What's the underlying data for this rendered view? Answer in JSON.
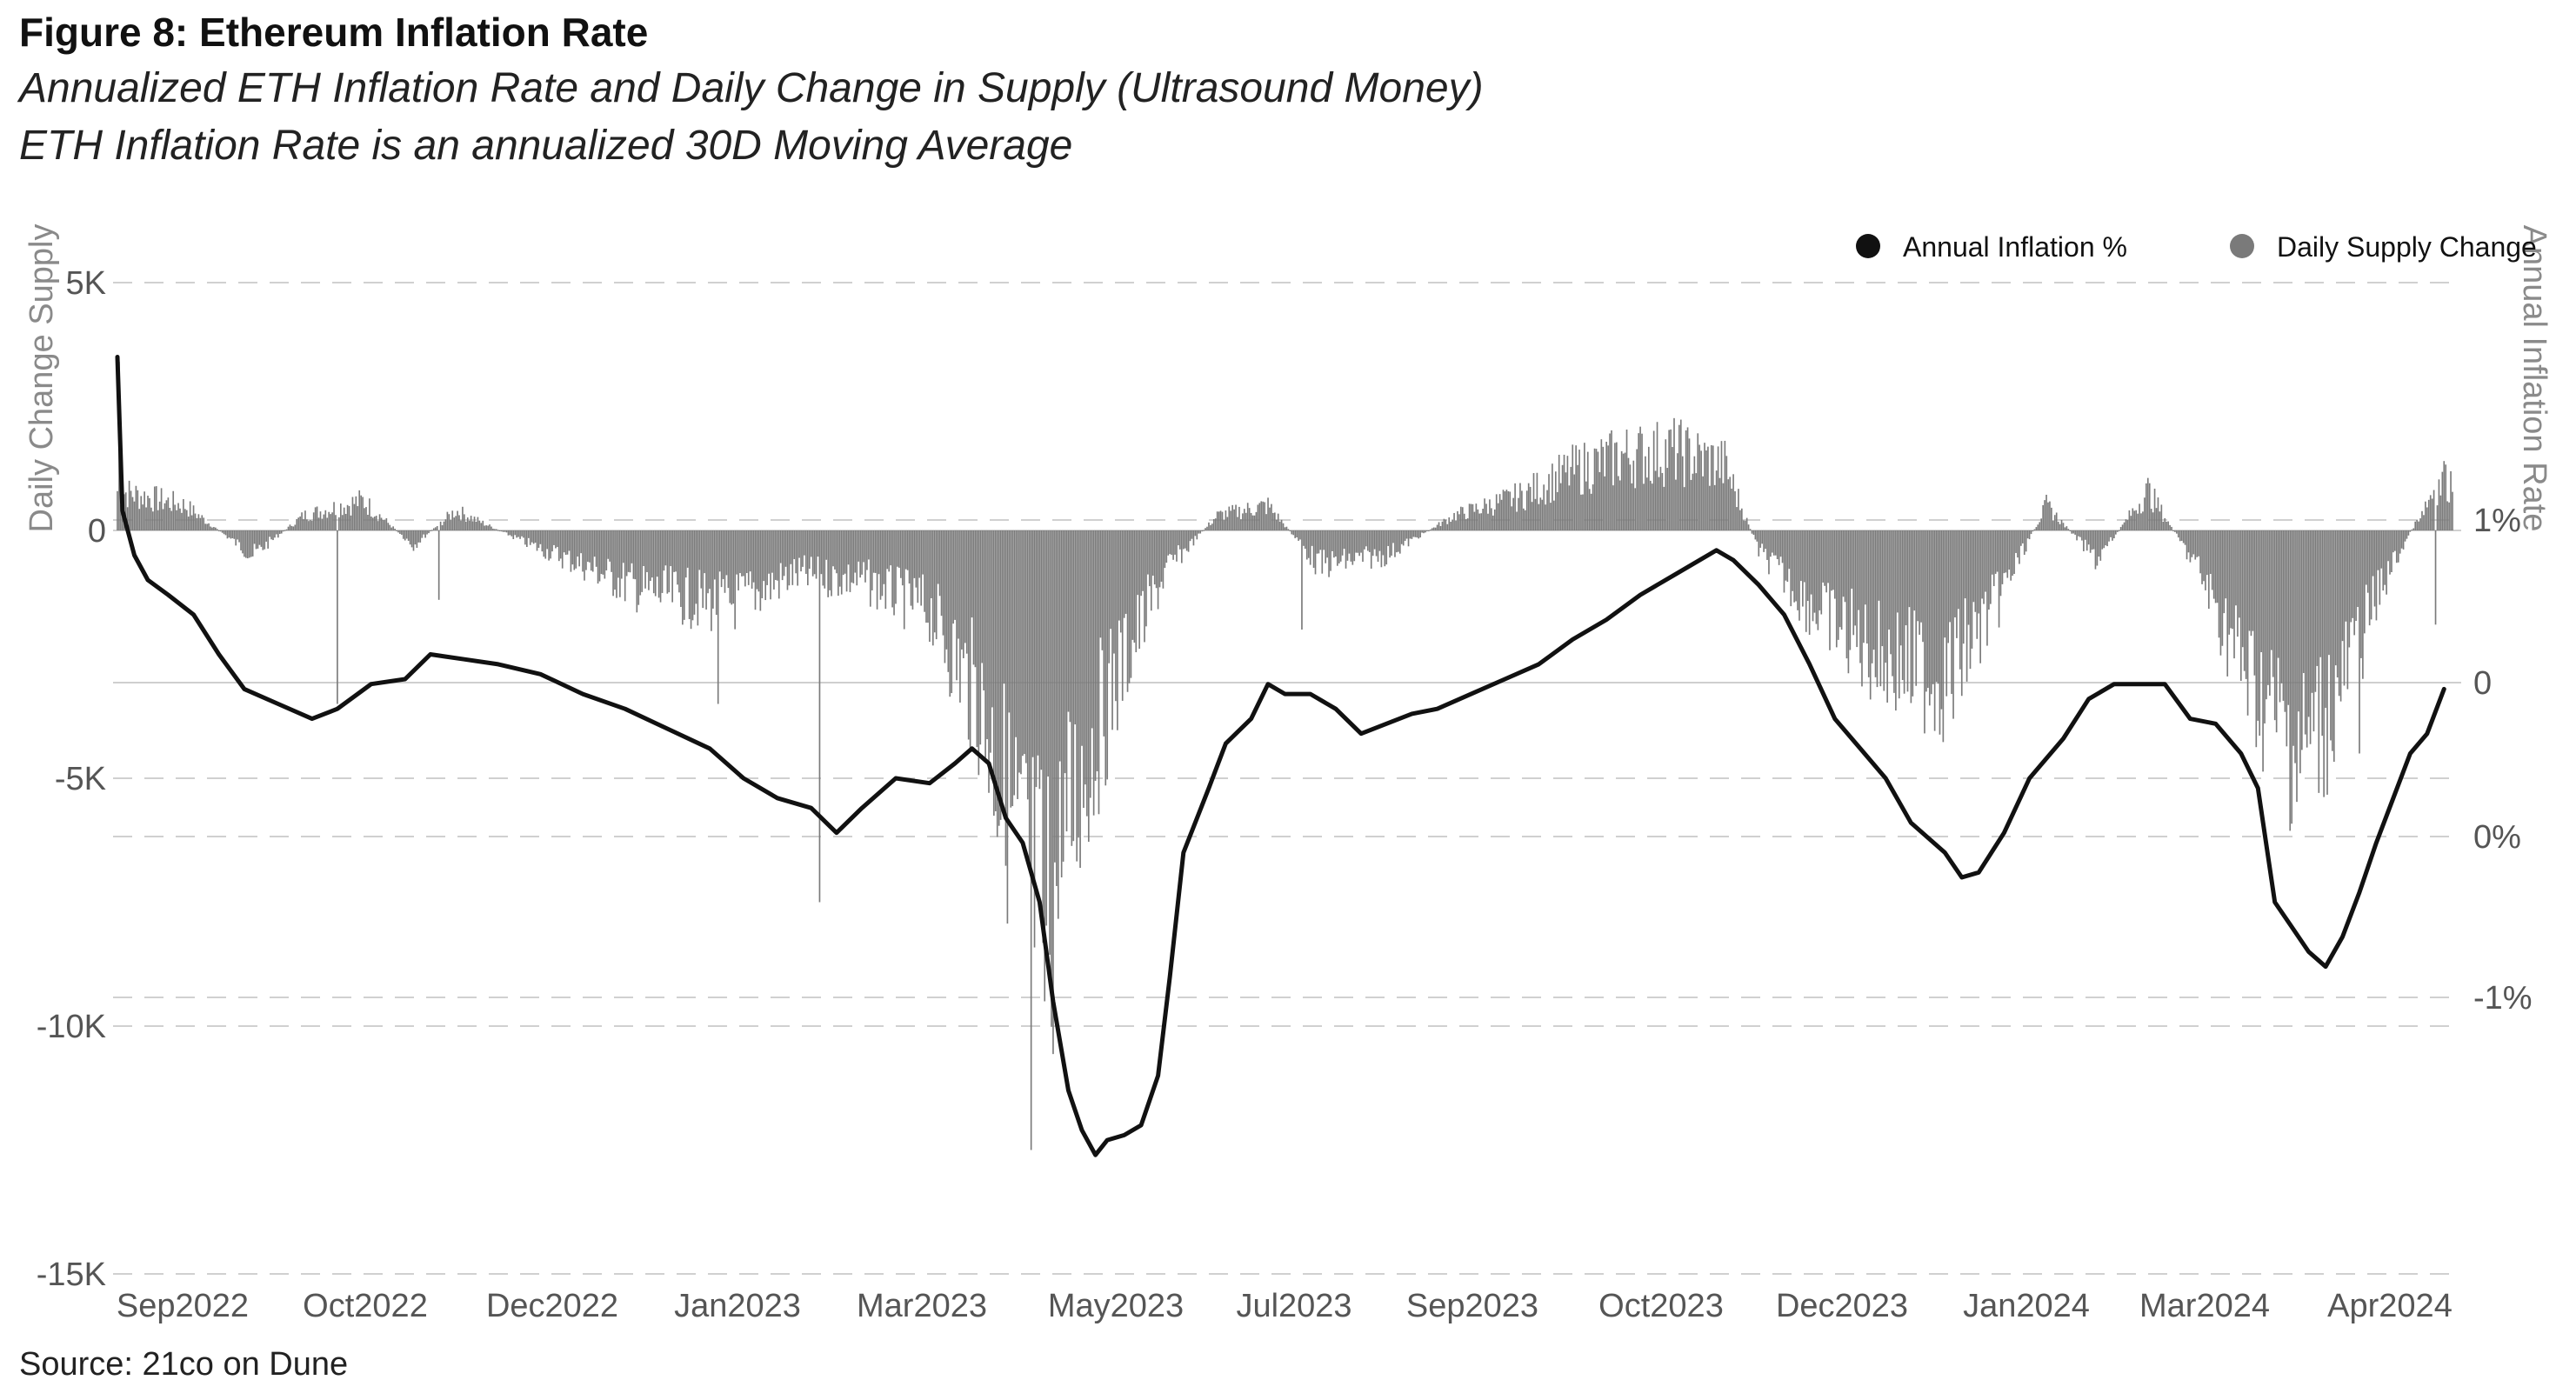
{
  "figure": {
    "title": "Figure 8: Ethereum Inflation Rate",
    "subtitle_1": "Annualized ETH Inflation Rate and Daily Change in Supply (Ultrasound Money)",
    "subtitle_2": "ETH Inflation Rate is an annualized 30D Moving Average",
    "source": "Source: 21co on Dune"
  },
  "colors": {
    "line": "#111111",
    "bars": "#7a7a7a",
    "grid": "#d0d0d0",
    "zero_line": "#cccccc"
  },
  "chart_data": {
    "type": "bar+line",
    "title": "Figure 8: Ethereum Inflation Rate",
    "left_axis": {
      "label": "Daily Change Supply",
      "ticks": [
        "5K",
        "0",
        "-5K",
        "-10K",
        "-15K"
      ],
      "tick_values": [
        5000,
        0,
        -5000,
        -10000,
        -15000
      ],
      "range": [
        -15000,
        5000
      ]
    },
    "right_axis": {
      "label": "Annual Inflation Rate",
      "ticks": [
        "1%",
        "0",
        "0%",
        "-1%"
      ]
    },
    "x_axis": {
      "ticks": [
        "Sep2022",
        "Oct2022",
        "Dec2022",
        "Jan2023",
        "Mar2023",
        "May2023",
        "Jul2023",
        "Sep2023",
        "Oct2023",
        "Dec2023",
        "Jan2024",
        "Mar2024",
        "Apr2024"
      ]
    },
    "legend": [
      {
        "name": "Annual Inflation %",
        "color": "#111111"
      },
      {
        "name": "Daily Supply Change",
        "color": "#7a7a7a"
      }
    ],
    "series": [
      {
        "name": "Daily Supply Change",
        "type": "bar",
        "unit": "ETH",
        "anchors": [
          {
            "x": 0,
            "y": 800
          },
          {
            "x": 40,
            "y": 500
          },
          {
            "x": 80,
            "y": -500
          },
          {
            "x": 110,
            "y": 300
          },
          {
            "x": 145,
            "y": 600
          },
          {
            "x": 175,
            "y": -300
          },
          {
            "x": 200,
            "y": 400
          },
          {
            "x": 245,
            "y": -300
          },
          {
            "x": 275,
            "y": -700
          },
          {
            "x": 310,
            "y": -1200
          },
          {
            "x": 360,
            "y": -1500
          },
          {
            "x": 400,
            "y": -900
          },
          {
            "x": 440,
            "y": -1000
          },
          {
            "x": 480,
            "y": -1600
          },
          {
            "x": 510,
            "y": -3500
          },
          {
            "x": 530,
            "y": -6000
          },
          {
            "x": 550,
            "y": -8000
          },
          {
            "x": 565,
            "y": -5500
          },
          {
            "x": 590,
            "y": -3000
          },
          {
            "x": 620,
            "y": -800
          },
          {
            "x": 650,
            "y": 300
          },
          {
            "x": 680,
            "y": 500
          },
          {
            "x": 710,
            "y": -700
          },
          {
            "x": 750,
            "y": -500
          },
          {
            "x": 790,
            "y": 300
          },
          {
            "x": 830,
            "y": 700
          },
          {
            "x": 860,
            "y": 1200
          },
          {
            "x": 890,
            "y": 1500
          },
          {
            "x": 920,
            "y": 1600
          },
          {
            "x": 950,
            "y": 1300
          },
          {
            "x": 970,
            "y": -400
          },
          {
            "x": 1000,
            "y": -1500
          },
          {
            "x": 1040,
            "y": -2500
          },
          {
            "x": 1080,
            "y": -3000
          },
          {
            "x": 1110,
            "y": -1500
          },
          {
            "x": 1140,
            "y": 500
          },
          {
            "x": 1170,
            "y": -600
          },
          {
            "x": 1200,
            "y": 800
          },
          {
            "x": 1230,
            "y": -800
          },
          {
            "x": 1260,
            "y": -3000
          },
          {
            "x": 1290,
            "y": -4500
          },
          {
            "x": 1310,
            "y": -3500
          },
          {
            "x": 1340,
            "y": -1000
          },
          {
            "x": 1370,
            "y": 900
          },
          {
            "x": 1380,
            "y": 1000
          }
        ],
        "spikes": [
          {
            "x": 1,
            "y": 3400
          },
          {
            "x": 130,
            "y": -3500
          },
          {
            "x": 190,
            "y": -1400
          },
          {
            "x": 355,
            "y": -3500
          },
          {
            "x": 415,
            "y": -7500
          },
          {
            "x": 540,
            "y": -12500
          },
          {
            "x": 548,
            "y": -9500
          },
          {
            "x": 558,
            "y": -7000
          },
          {
            "x": 700,
            "y": -2000
          },
          {
            "x": 1085,
            "y": -3800
          },
          {
            "x": 1325,
            "y": -4500
          },
          {
            "x": 1370,
            "y": -1900
          },
          {
            "x": 1375,
            "y": 1400
          }
        ]
      },
      {
        "name": "Annual Inflation %",
        "type": "line",
        "unit": "plotted on Daily Change Supply scale",
        "points": [
          {
            "x": 0,
            "y": 3500
          },
          {
            "x": 3,
            "y": 400
          },
          {
            "x": 10,
            "y": -500
          },
          {
            "x": 18,
            "y": -1000
          },
          {
            "x": 30,
            "y": -1300
          },
          {
            "x": 45,
            "y": -1700
          },
          {
            "x": 60,
            "y": -2500
          },
          {
            "x": 75,
            "y": -3200
          },
          {
            "x": 95,
            "y": -3500
          },
          {
            "x": 115,
            "y": -3800
          },
          {
            "x": 130,
            "y": -3600
          },
          {
            "x": 150,
            "y": -3100
          },
          {
            "x": 170,
            "y": -3000
          },
          {
            "x": 185,
            "y": -2500
          },
          {
            "x": 205,
            "y": -2600
          },
          {
            "x": 225,
            "y": -2700
          },
          {
            "x": 250,
            "y": -2900
          },
          {
            "x": 275,
            "y": -3300
          },
          {
            "x": 300,
            "y": -3600
          },
          {
            "x": 325,
            "y": -4000
          },
          {
            "x": 350,
            "y": -4400
          },
          {
            "x": 370,
            "y": -5000
          },
          {
            "x": 390,
            "y": -5400
          },
          {
            "x": 410,
            "y": -5600
          },
          {
            "x": 425,
            "y": -6100
          },
          {
            "x": 440,
            "y": -5600
          },
          {
            "x": 460,
            "y": -5000
          },
          {
            "x": 480,
            "y": -5100
          },
          {
            "x": 495,
            "y": -4700
          },
          {
            "x": 505,
            "y": -4400
          },
          {
            "x": 515,
            "y": -4700
          },
          {
            "x": 525,
            "y": -5800
          },
          {
            "x": 535,
            "y": -6300
          },
          {
            "x": 545,
            "y": -7500
          },
          {
            "x": 553,
            "y": -9500
          },
          {
            "x": 562,
            "y": -11300
          },
          {
            "x": 570,
            "y": -12100
          },
          {
            "x": 578,
            "y": -12600
          },
          {
            "x": 585,
            "y": -12300
          },
          {
            "x": 595,
            "y": -12200
          },
          {
            "x": 605,
            "y": -12000
          },
          {
            "x": 615,
            "y": -11000
          },
          {
            "x": 622,
            "y": -9000
          },
          {
            "x": 630,
            "y": -6500
          },
          {
            "x": 645,
            "y": -5200
          },
          {
            "x": 655,
            "y": -4300
          },
          {
            "x": 670,
            "y": -3800
          },
          {
            "x": 680,
            "y": -3100
          },
          {
            "x": 690,
            "y": -3300
          },
          {
            "x": 705,
            "y": -3300
          },
          {
            "x": 720,
            "y": -3600
          },
          {
            "x": 735,
            "y": -4100
          },
          {
            "x": 750,
            "y": -3900
          },
          {
            "x": 765,
            "y": -3700
          },
          {
            "x": 780,
            "y": -3600
          },
          {
            "x": 800,
            "y": -3300
          },
          {
            "x": 820,
            "y": -3000
          },
          {
            "x": 840,
            "y": -2700
          },
          {
            "x": 860,
            "y": -2200
          },
          {
            "x": 880,
            "y": -1800
          },
          {
            "x": 900,
            "y": -1300
          },
          {
            "x": 920,
            "y": -900
          },
          {
            "x": 935,
            "y": -600
          },
          {
            "x": 945,
            "y": -400
          },
          {
            "x": 955,
            "y": -600
          },
          {
            "x": 970,
            "y": -1100
          },
          {
            "x": 985,
            "y": -1700
          },
          {
            "x": 1000,
            "y": -2700
          },
          {
            "x": 1015,
            "y": -3800
          },
          {
            "x": 1030,
            "y": -4400
          },
          {
            "x": 1045,
            "y": -5000
          },
          {
            "x": 1060,
            "y": -5900
          },
          {
            "x": 1080,
            "y": -6500
          },
          {
            "x": 1090,
            "y": -7000
          },
          {
            "x": 1100,
            "y": -6900
          },
          {
            "x": 1115,
            "y": -6100
          },
          {
            "x": 1130,
            "y": -5000
          },
          {
            "x": 1150,
            "y": -4200
          },
          {
            "x": 1165,
            "y": -3400
          },
          {
            "x": 1180,
            "y": -3100
          },
          {
            "x": 1195,
            "y": -3100
          },
          {
            "x": 1210,
            "y": -3100
          },
          {
            "x": 1225,
            "y": -3800
          },
          {
            "x": 1240,
            "y": -3900
          },
          {
            "x": 1255,
            "y": -4500
          },
          {
            "x": 1265,
            "y": -5200
          },
          {
            "x": 1275,
            "y": -7500
          },
          {
            "x": 1285,
            "y": -8000
          },
          {
            "x": 1295,
            "y": -8500
          },
          {
            "x": 1305,
            "y": -8800
          },
          {
            "x": 1315,
            "y": -8200
          },
          {
            "x": 1325,
            "y": -7300
          },
          {
            "x": 1335,
            "y": -6300
          },
          {
            "x": 1345,
            "y": -5400
          },
          {
            "x": 1355,
            "y": -4500
          },
          {
            "x": 1365,
            "y": -4100
          },
          {
            "x": 1375,
            "y": -3200
          }
        ]
      }
    ]
  }
}
